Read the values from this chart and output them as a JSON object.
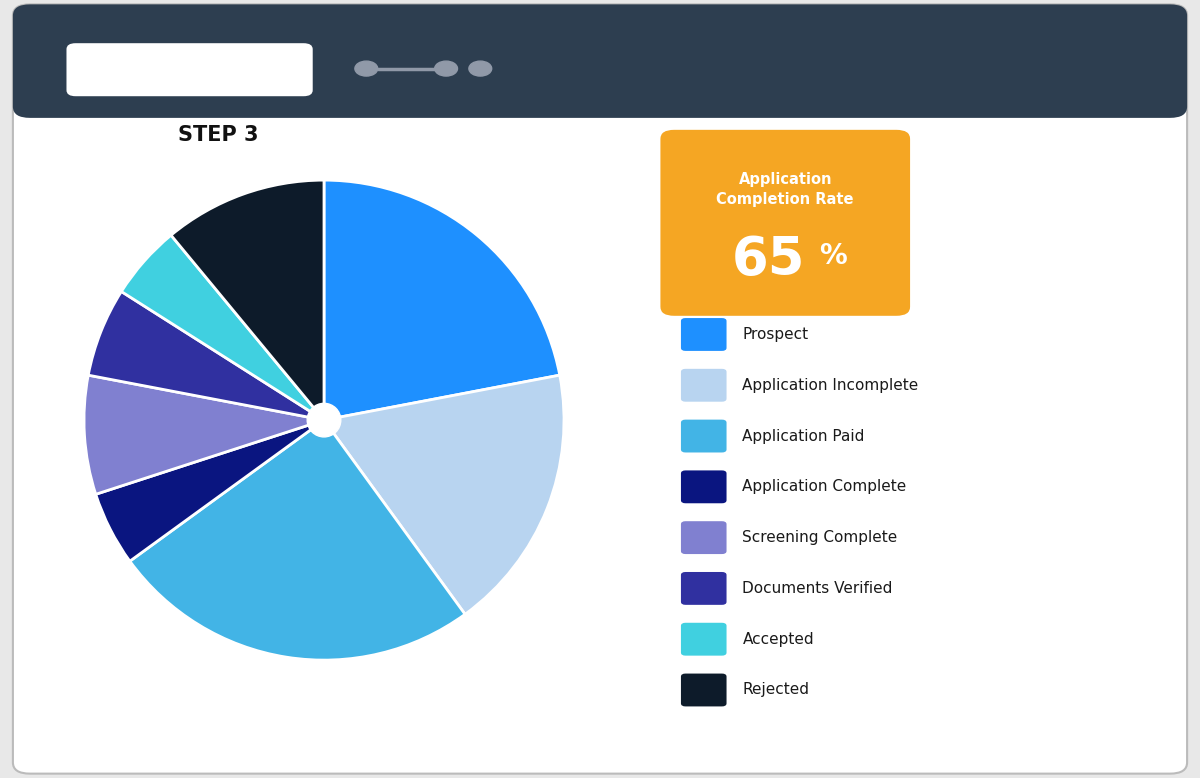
{
  "title": "STEP 3",
  "pie_labels": [
    "Prospect",
    "Application Incomplete",
    "Application Paid",
    "Application Complete",
    "Screening Complete",
    "Documents Verified",
    "Accepted",
    "Rejected"
  ],
  "pie_values": [
    22,
    18,
    25,
    5,
    8,
    6,
    5,
    11
  ],
  "pie_colors": [
    "#1E90FF",
    "#B8D4F0",
    "#42B4E6",
    "#0A1580",
    "#8080D0",
    "#3030A0",
    "#40D0E0",
    "#0D1B2A"
  ],
  "legend_colors": [
    "#1E90FF",
    "#B8D4F0",
    "#42B4E6",
    "#0A1580",
    "#8080D0",
    "#3030A0",
    "#40D0E0",
    "#0D1B2A"
  ],
  "completion_rate": "65",
  "completion_label": "Application\nCompletion Rate",
  "orange_color": "#F5A623",
  "header_color": "#2D3E50",
  "bg_color": "#FFFFFF"
}
